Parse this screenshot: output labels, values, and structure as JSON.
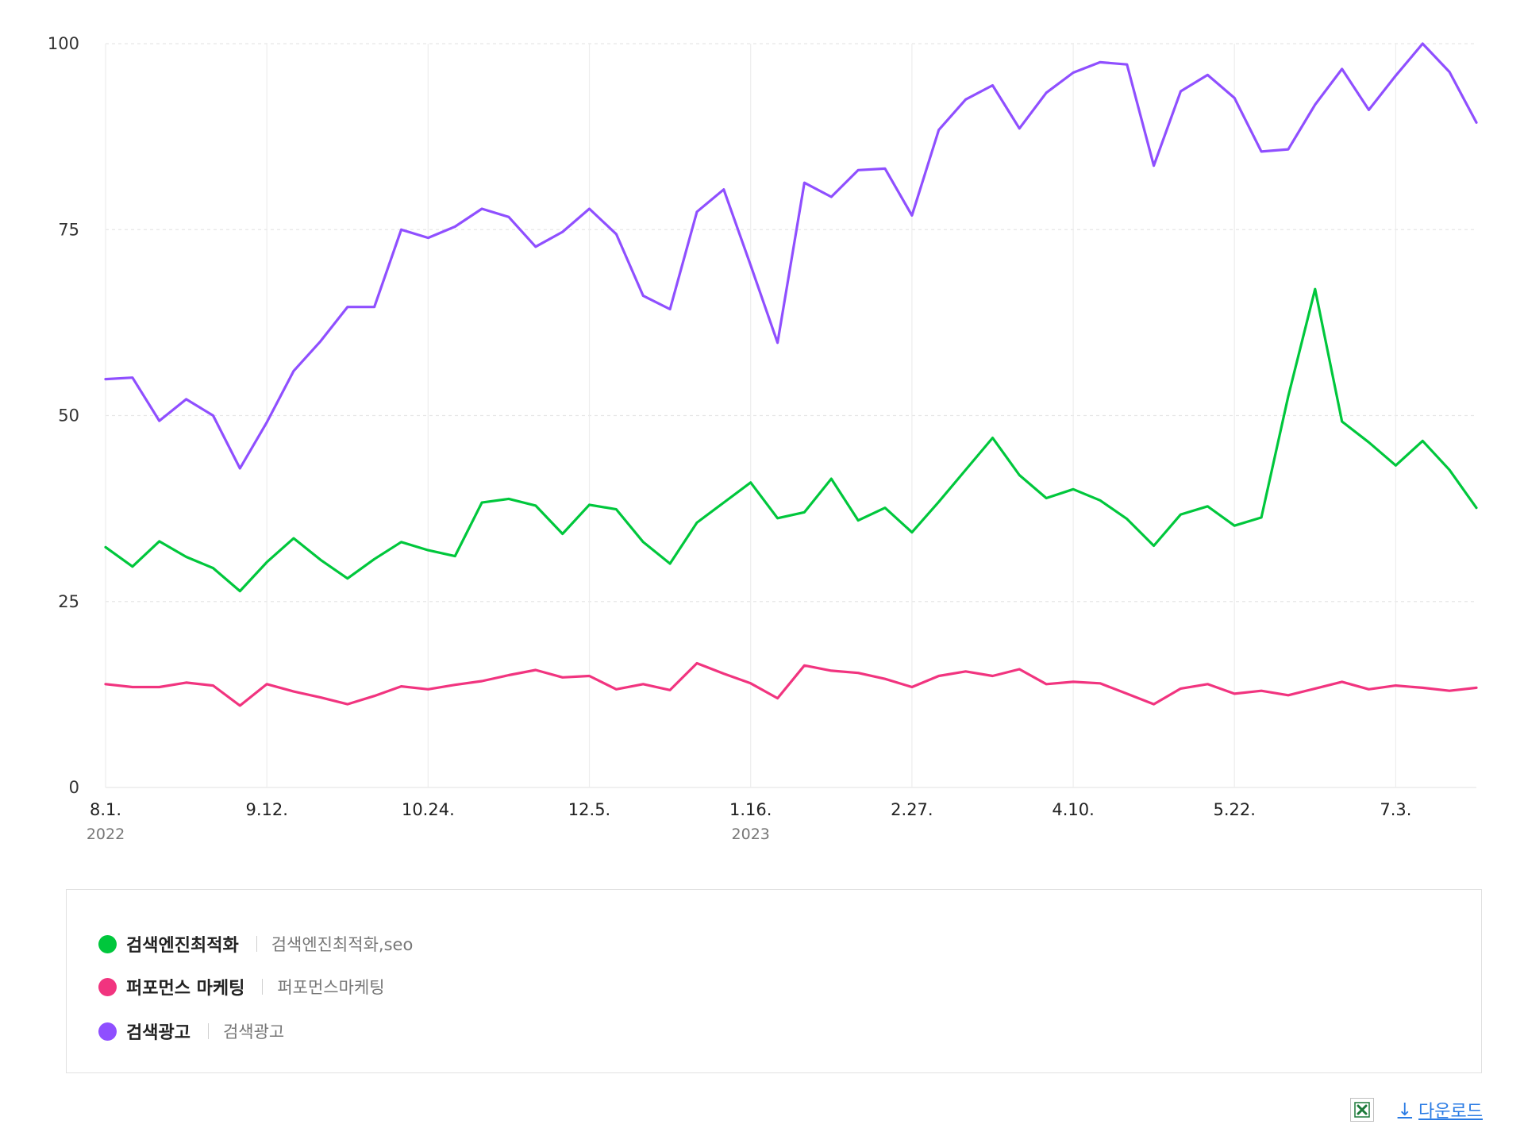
{
  "chart_data": {
    "type": "line",
    "y_ticks": [
      "0",
      "25",
      "50",
      "75",
      "100"
    ],
    "ylim": [
      0,
      100
    ],
    "x_tick_labels": [
      {
        "index": 0,
        "label": "8.1.",
        "year": "2022"
      },
      {
        "index": 6,
        "label": "9.12.",
        "year": ""
      },
      {
        "index": 12,
        "label": "10.24.",
        "year": ""
      },
      {
        "index": 18,
        "label": "12.5.",
        "year": ""
      },
      {
        "index": 24,
        "label": "1.16.",
        "year": "2023"
      },
      {
        "index": 30,
        "label": "2.27.",
        "year": ""
      },
      {
        "index": 36,
        "label": "4.10.",
        "year": ""
      },
      {
        "index": 42,
        "label": "5.22.",
        "year": ""
      },
      {
        "index": 48,
        "label": "7.3.",
        "year": ""
      }
    ],
    "point_count": 52,
    "grid": "on",
    "series": [
      {
        "name": "검색엔진최적화",
        "color": "#00c73c",
        "values": [
          32.3,
          29.7,
          33.1,
          31,
          29.5,
          26.4,
          30.3,
          33.5,
          30.6,
          28.1,
          30.7,
          33,
          31.9,
          31.1,
          38.3,
          38.8,
          37.9,
          34.1,
          38,
          37.4,
          33,
          30.1,
          35.6,
          38.3,
          41,
          36.2,
          37,
          41.5,
          35.9,
          37.6,
          34.3,
          38.4,
          42.7,
          47,
          42,
          38.9,
          40.1,
          38.6,
          36.1,
          32.5,
          36.7,
          37.8,
          35.2,
          36.3,
          52.6,
          67,
          49.2,
          46.4,
          43.3,
          46.6,
          42.7,
          37.6
        ]
      },
      {
        "name": "퍼포먼스 마케팅",
        "color": "#f1347f",
        "values": [
          13.9,
          13.5,
          13.5,
          14.1,
          13.7,
          11,
          13.9,
          12.9,
          12.1,
          11.2,
          12.3,
          13.6,
          13.2,
          13.8,
          14.3,
          15.1,
          15.8,
          14.8,
          15,
          13.2,
          13.9,
          13.1,
          16.7,
          15.3,
          14,
          12,
          16.4,
          15.7,
          15.4,
          14.6,
          13.5,
          15,
          15.6,
          15,
          15.9,
          13.9,
          14.2,
          14,
          12.6,
          11.2,
          13.3,
          13.9,
          12.6,
          13,
          12.4,
          13.3,
          14.2,
          13.2,
          13.7,
          13.4,
          13,
          13.4
        ]
      },
      {
        "name": "검색광고",
        "color": "#8f4fff",
        "values": [
          54.9,
          55.1,
          49.3,
          52.2,
          50,
          42.9,
          49.1,
          56,
          60,
          64.6,
          64.6,
          75,
          73.9,
          75.4,
          77.8,
          76.7,
          72.7,
          74.7,
          77.8,
          74.4,
          66.1,
          64.3,
          77.4,
          80.4,
          70.2,
          59.8,
          81.3,
          79.4,
          83,
          83.2,
          76.9,
          88.4,
          92.5,
          94.4,
          88.6,
          93.4,
          96.1,
          97.5,
          97.2,
          83.6,
          93.6,
          95.8,
          92.7,
          85.5,
          85.8,
          91.8,
          96.6,
          91.1,
          95.7,
          100,
          96.2,
          89.4
        ]
      }
    ]
  },
  "legend": {
    "items": [
      {
        "name": "검색엔진최적화",
        "keywords": "검색엔진최적화,seo",
        "color": "#00c73c"
      },
      {
        "name": "퍼포먼스 마케팅",
        "keywords": "퍼포먼스마케팅",
        "color": "#f1347f"
      },
      {
        "name": "검색광고",
        "keywords": "검색광고",
        "color": "#8f4fff"
      }
    ]
  },
  "download": {
    "label": "다운로드",
    "arrow_icon": "download-arrow-icon",
    "excel_icon": "excel-icon"
  }
}
